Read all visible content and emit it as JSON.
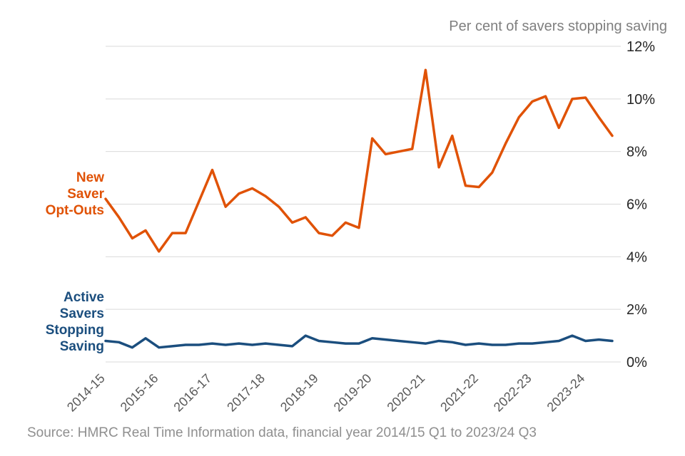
{
  "labels": {
    "new_saver_opt_outs": "New\nSaver\nOpt-Outs",
    "active_savers": "Active\nSavers\nStopping\nSaving"
  },
  "colors": {
    "orange_series": "#e05206",
    "blue_series": "#1b4e7e",
    "gridline": "#d9d9d9",
    "title_gray": "#7f7f7f"
  },
  "chart_data": {
    "type": "line",
    "title": "Per cent of savers stopping saving",
    "source": "Source: HMRC Real Time Information data, financial year 2014/15 Q1 to 2023/24 Q3",
    "x_tick_labels": [
      "2014-15",
      "2015-16",
      "2016-17",
      "2017-18",
      "2018-19",
      "2019-20",
      "2020-21",
      "2021-22",
      "2022-23",
      "2023-24"
    ],
    "points_per_year": 4,
    "x_unit": "financial-year quarters, 2014/15 Q1 to 2023/24 Q3",
    "ylim": [
      0,
      12
    ],
    "yticks": [
      0,
      2,
      4,
      6,
      8,
      10,
      12
    ],
    "ytick_suffix": "%",
    "grid": true,
    "legend_position": "left-of-lines",
    "series": [
      {
        "name": "New Saver Opt-Outs",
        "color": "#e05206",
        "values": [
          6.2,
          5.5,
          4.7,
          5.0,
          4.2,
          4.9,
          4.9,
          6.1,
          7.3,
          5.9,
          6.4,
          6.6,
          6.3,
          5.9,
          5.3,
          5.5,
          4.9,
          4.8,
          5.3,
          5.1,
          8.5,
          7.9,
          8.0,
          8.1,
          11.1,
          7.4,
          8.6,
          6.7,
          6.65,
          7.2,
          8.3,
          9.3,
          9.9,
          10.1,
          8.9,
          10.0,
          10.05,
          9.3,
          8.6
        ]
      },
      {
        "name": "Active Savers Stopping Saving",
        "color": "#1b4e7e",
        "values": [
          0.8,
          0.75,
          0.55,
          0.9,
          0.55,
          0.6,
          0.65,
          0.65,
          0.7,
          0.65,
          0.7,
          0.65,
          0.7,
          0.65,
          0.6,
          1.0,
          0.8,
          0.75,
          0.7,
          0.7,
          0.9,
          0.85,
          0.8,
          0.75,
          0.7,
          0.8,
          0.75,
          0.65,
          0.7,
          0.65,
          0.65,
          0.7,
          0.7,
          0.75,
          0.8,
          1.0,
          0.8,
          0.85,
          0.8
        ]
      }
    ]
  }
}
